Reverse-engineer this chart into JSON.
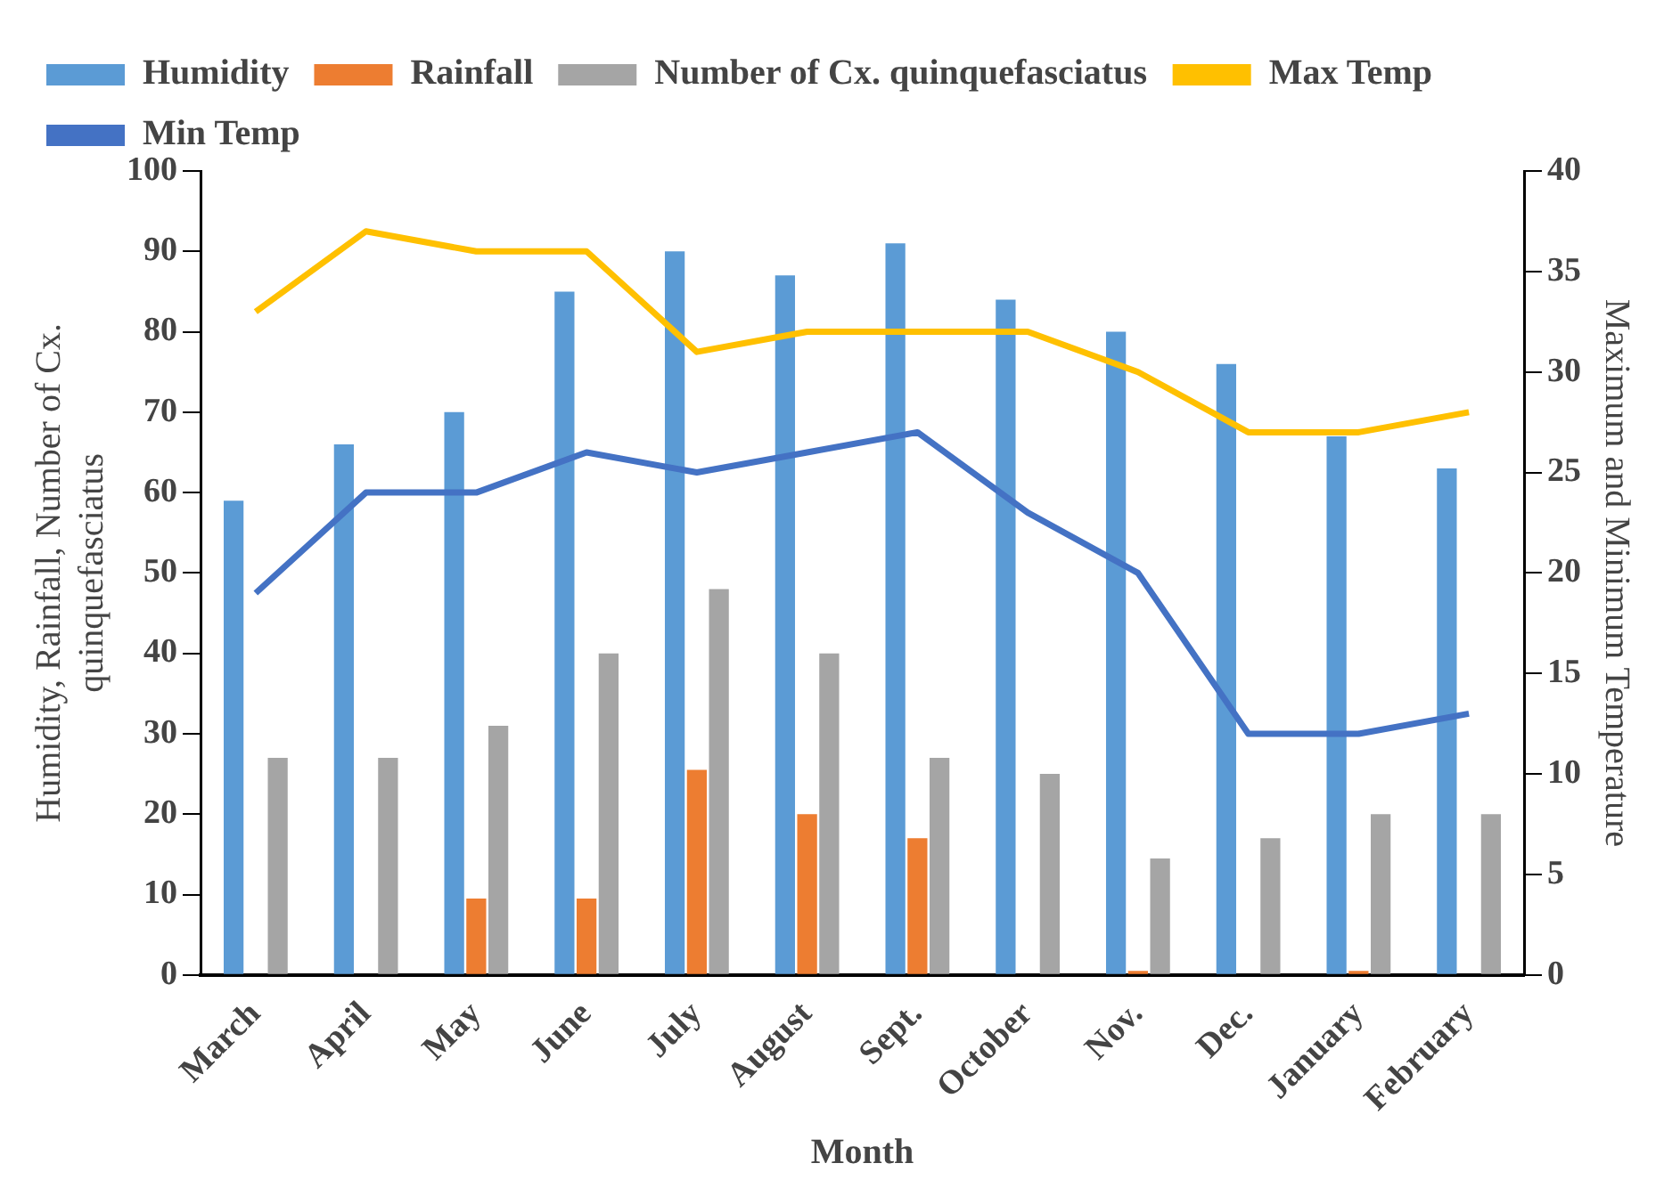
{
  "chart_data": {
    "type": "bar",
    "xlabel": "Month",
    "ylabel": "Humidity, Rainfall, Number of Cx. quinquefasciatus",
    "y2label": "Maximum and Minimum Temperature",
    "categories": [
      "March",
      "April",
      "May",
      "June",
      "July",
      "August",
      "Sept.",
      "October",
      "Nov.",
      "Dec.",
      "January",
      "February"
    ],
    "series": [
      {
        "name": "Humidity",
        "color": "#5b9bd5",
        "values": [
          59,
          66,
          70,
          85,
          90,
          87,
          91,
          84,
          80,
          76,
          67,
          63
        ]
      },
      {
        "name": "Rainfall",
        "color": "#ed7d31",
        "values": [
          0,
          0,
          9.5,
          9.5,
          25.5,
          20,
          17,
          0,
          0.5,
          0,
          0.5,
          0
        ]
      },
      {
        "name": "Number of Cx. quinquefasciatus",
        "color": "#a5a5a5",
        "values": [
          27,
          27,
          31,
          40,
          48,
          40,
          27,
          25,
          14.5,
          17,
          20,
          20
        ]
      },
      {
        "name": "Max Temp",
        "type": "line",
        "axis": "y2",
        "color": "#ffc000",
        "values": [
          33,
          37,
          36,
          36,
          31,
          32,
          32,
          32,
          30,
          27,
          27,
          28
        ]
      },
      {
        "name": "Min Temp",
        "type": "line",
        "axis": "y2",
        "color": "#4472c4",
        "values": [
          19,
          24,
          24,
          26,
          25,
          26,
          27,
          23,
          20,
          12,
          12,
          13
        ]
      }
    ],
    "ylim": [
      0,
      100
    ],
    "yticks": [
      0,
      10,
      20,
      30,
      40,
      50,
      60,
      70,
      80,
      90,
      100
    ],
    "y2lim": [
      0,
      40
    ],
    "y2ticks": [
      0,
      5,
      10,
      15,
      20,
      25,
      30,
      35,
      40
    ],
    "grid": false,
    "legend": "top left",
    "marker": "none",
    "line_style": "solid"
  }
}
